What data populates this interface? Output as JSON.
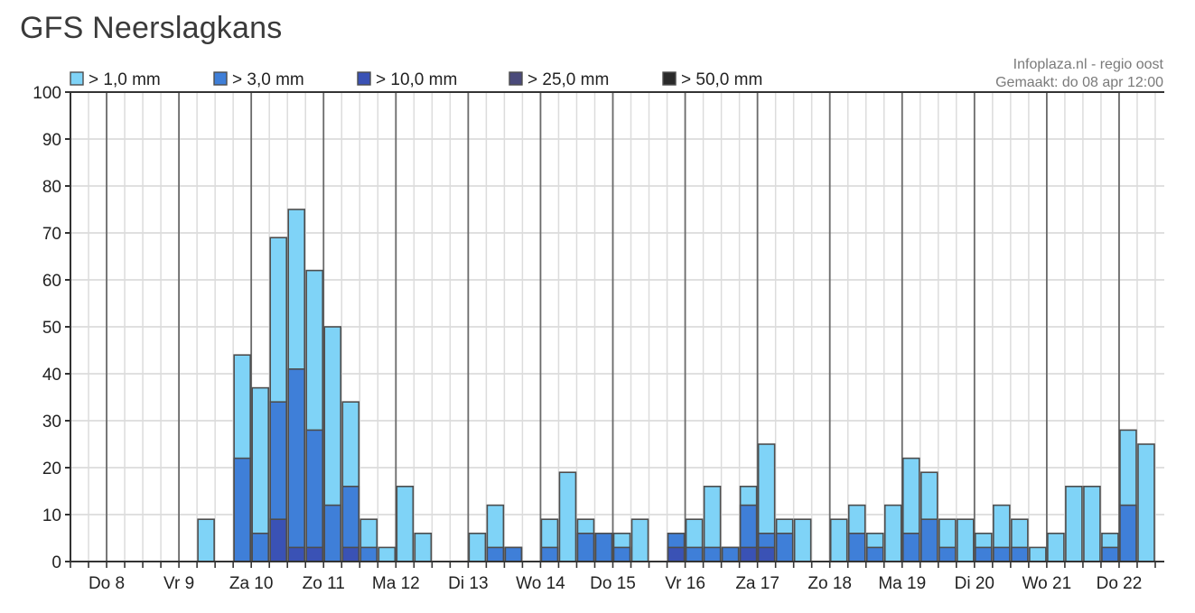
{
  "page": {
    "title": "GFS Neerslagkans"
  },
  "chart_data": {
    "type": "bar",
    "stacked": "overlay",
    "ylim": [
      0,
      100
    ],
    "yticks": [
      0,
      10,
      20,
      30,
      40,
      50,
      60,
      70,
      80,
      90,
      100
    ],
    "grid": true,
    "legend_position": "top-left",
    "credit": [
      "Infoplaza.nl - regio oost",
      "Gemaakt: do 08 apr 12:00"
    ],
    "x_day_labels": [
      "Do 8",
      "Vr 9",
      "Za 10",
      "Zo 11",
      "Ma 12",
      "Di 13",
      "Wo 14",
      "Do 15",
      "Vr 16",
      "Za 17",
      "Zo 18",
      "Ma 19",
      "Di 20",
      "Wo 21",
      "Do 22"
    ],
    "series": [
      {
        "name": "> 1,0 mm",
        "color": "#7fd3f7",
        "values": [
          0,
          0,
          0,
          0,
          0,
          0,
          9,
          0,
          44,
          37,
          69,
          75,
          62,
          50,
          34,
          9,
          3,
          16,
          6,
          0,
          0,
          6,
          12,
          3,
          0,
          9,
          19,
          9,
          6,
          6,
          9,
          0,
          6,
          9,
          16,
          3,
          16,
          25,
          9,
          9,
          0,
          9,
          12,
          6,
          12,
          22,
          19,
          9,
          9,
          6,
          12,
          9,
          3,
          6,
          16,
          16,
          6,
          28,
          25
        ]
      },
      {
        "name": "> 3,0 mm",
        "color": "#3f7fd8",
        "values": [
          0,
          0,
          0,
          0,
          0,
          0,
          0,
          0,
          22,
          6,
          34,
          41,
          28,
          12,
          16,
          3,
          0,
          0,
          0,
          0,
          0,
          0,
          3,
          3,
          0,
          3,
          0,
          6,
          6,
          3,
          0,
          0,
          6,
          3,
          3,
          3,
          12,
          6,
          6,
          0,
          0,
          0,
          6,
          3,
          0,
          6,
          9,
          3,
          0,
          3,
          3,
          3,
          0,
          0,
          0,
          0,
          3,
          12,
          0
        ]
      },
      {
        "name": "> 10,0 mm",
        "color": "#3a52b5",
        "values": [
          0,
          0,
          0,
          0,
          0,
          0,
          0,
          0,
          0,
          0,
          9,
          3,
          3,
          0,
          3,
          0,
          0,
          0,
          0,
          0,
          0,
          0,
          0,
          0,
          0,
          0,
          0,
          0,
          0,
          0,
          0,
          0,
          3,
          0,
          0,
          0,
          3,
          3,
          0,
          0,
          0,
          0,
          0,
          0,
          0,
          0,
          0,
          0,
          0,
          0,
          0,
          0,
          0,
          0,
          0,
          0,
          0,
          0,
          0
        ]
      },
      {
        "name": "> 25,0 mm",
        "color": "#4a4a7a",
        "values": [
          0,
          0,
          0,
          0,
          0,
          0,
          0,
          0,
          0,
          0,
          0,
          0,
          0,
          0,
          0,
          0,
          0,
          0,
          0,
          0,
          0,
          0,
          0,
          0,
          0,
          0,
          0,
          0,
          0,
          0,
          0,
          0,
          0,
          0,
          0,
          0,
          0,
          0,
          0,
          0,
          0,
          0,
          0,
          0,
          0,
          0,
          0,
          0,
          0,
          0,
          0,
          0,
          0,
          0,
          0,
          0,
          0,
          0,
          0
        ]
      },
      {
        "name": "> 50,0 mm",
        "color": "#2a2a2a",
        "values": [
          0,
          0,
          0,
          0,
          0,
          0,
          0,
          0,
          0,
          0,
          0,
          0,
          0,
          0,
          0,
          0,
          0,
          0,
          0,
          0,
          0,
          0,
          0,
          0,
          0,
          0,
          0,
          0,
          0,
          0,
          0,
          0,
          0,
          0,
          0,
          0,
          0,
          0,
          0,
          0,
          0,
          0,
          0,
          0,
          0,
          0,
          0,
          0,
          0,
          0,
          0,
          0,
          0,
          0,
          0,
          0,
          0,
          0,
          0
        ]
      }
    ]
  }
}
